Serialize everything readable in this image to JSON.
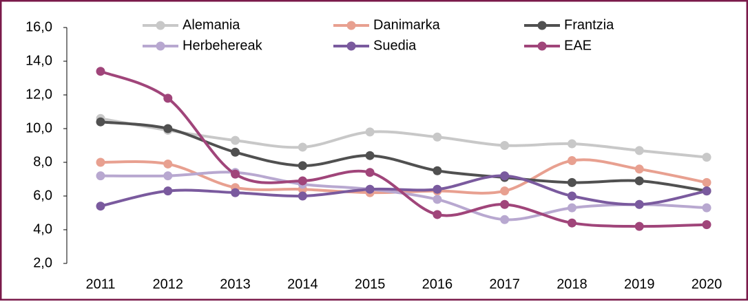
{
  "chart_data": {
    "type": "line",
    "categories": [
      "2011",
      "2012",
      "2013",
      "2014",
      "2015",
      "2016",
      "2017",
      "2018",
      "2019",
      "2020"
    ],
    "series": [
      {
        "name": "Alemania",
        "color": "#c8c8c8",
        "values": [
          10.6,
          9.9,
          9.3,
          8.9,
          9.8,
          9.5,
          9.0,
          9.1,
          8.7,
          8.3
        ]
      },
      {
        "name": "Danimarka",
        "color": "#e8a090",
        "values": [
          8.0,
          7.9,
          6.5,
          6.4,
          6.2,
          6.3,
          6.3,
          8.1,
          7.6,
          6.8
        ]
      },
      {
        "name": "Frantzia",
        "color": "#505050",
        "values": [
          10.4,
          10.0,
          8.6,
          7.8,
          8.4,
          7.5,
          7.1,
          6.8,
          6.9,
          6.3
        ]
      },
      {
        "name": "Herbehereak",
        "color": "#b8a8d0",
        "values": [
          7.2,
          7.2,
          7.4,
          6.7,
          6.4,
          5.8,
          4.6,
          5.3,
          5.5,
          5.3
        ]
      },
      {
        "name": "Suedia",
        "color": "#7a5a9e",
        "values": [
          5.4,
          6.3,
          6.2,
          6.0,
          6.4,
          6.4,
          7.2,
          6.0,
          5.5,
          6.3
        ]
      },
      {
        "name": "EAE",
        "color": "#a0457a",
        "values": [
          13.4,
          11.8,
          7.3,
          6.9,
          7.4,
          4.9,
          5.5,
          4.4,
          4.2,
          4.3
        ]
      }
    ],
    "ylim": [
      2,
      16
    ],
    "yticks": [
      {
        "value": 2,
        "label": "2,0"
      },
      {
        "value": 4,
        "label": "4,0"
      },
      {
        "value": 6,
        "label": "6,0"
      },
      {
        "value": 8,
        "label": "8,0"
      },
      {
        "value": 10,
        "label": "10,0"
      },
      {
        "value": 12,
        "label": "12,0"
      },
      {
        "value": 14,
        "label": "14,0"
      },
      {
        "value": 16,
        "label": "16,0"
      }
    ],
    "legend": "top"
  }
}
